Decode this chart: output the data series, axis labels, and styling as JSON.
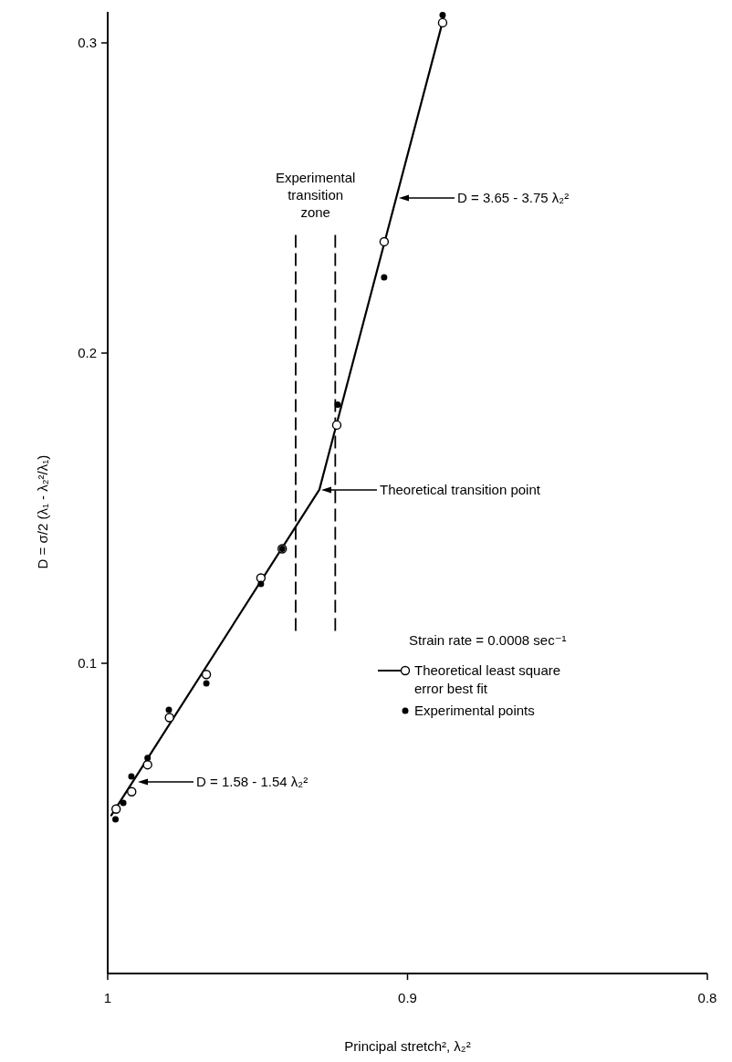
{
  "chart_data": {
    "type": "scatter",
    "xlabel": "Principal stretch², λ₂²",
    "ylabel": "D = σ/2 (λ₁ - λ₂²/λ₁)",
    "xlim": [
      1,
      0.8
    ],
    "xticks": [
      1,
      0.9,
      0.8
    ],
    "ylim": [
      0,
      0.31
    ],
    "yticks": [
      0.1,
      0.2,
      0.3
    ],
    "legend": "right",
    "series": [
      {
        "type": "line",
        "color": "#000000",
        "marker": "none",
        "x": [
          0.9988,
          0.9294,
          0.8877
        ],
        "values": [
          0.051,
          0.156,
          0.309
        ]
      },
      {
        "name": "Theoretical least square error best fit",
        "color": "#ffffff",
        "marker": "circle",
        "x": [
          0.9972,
          0.992,
          0.9867,
          0.9794,
          0.9671,
          0.9489,
          0.9418,
          0.9236,
          0.9078,
          0.8883
        ],
        "values": [
          0.053,
          0.0586,
          0.0673,
          0.0825,
          0.0964,
          0.1275,
          0.1369,
          0.1768,
          0.2359,
          0.3065
        ]
      },
      {
        "name": "Experimental points",
        "color": "#000000",
        "marker": "circle",
        "x": [
          0.9974,
          0.9948,
          0.9921,
          0.9867,
          0.9796,
          0.9671,
          0.9489,
          0.9418,
          0.9233,
          0.9078,
          0.8883
        ],
        "values": [
          0.0497,
          0.055,
          0.0635,
          0.0695,
          0.085,
          0.0935,
          0.1256,
          0.1369,
          0.1834,
          0.2244,
          0.309
        ]
      }
    ],
    "ref_lines": [
      {
        "axis": "x",
        "value": 0.9373,
        "label": "Experimental transition zone",
        "line_style": "dashed",
        "color": "#000000"
      },
      {
        "axis": "x",
        "value": 0.9241,
        "line_style": "dashed",
        "color": "#000000"
      }
    ],
    "annotations": [
      "D = 3.65 - 3.75 λ₂²",
      "Theoretical transition point",
      "D = 1.58 - 1.54 λ₂²",
      "Strain rate = 0.0008 sec⁻¹"
    ]
  }
}
